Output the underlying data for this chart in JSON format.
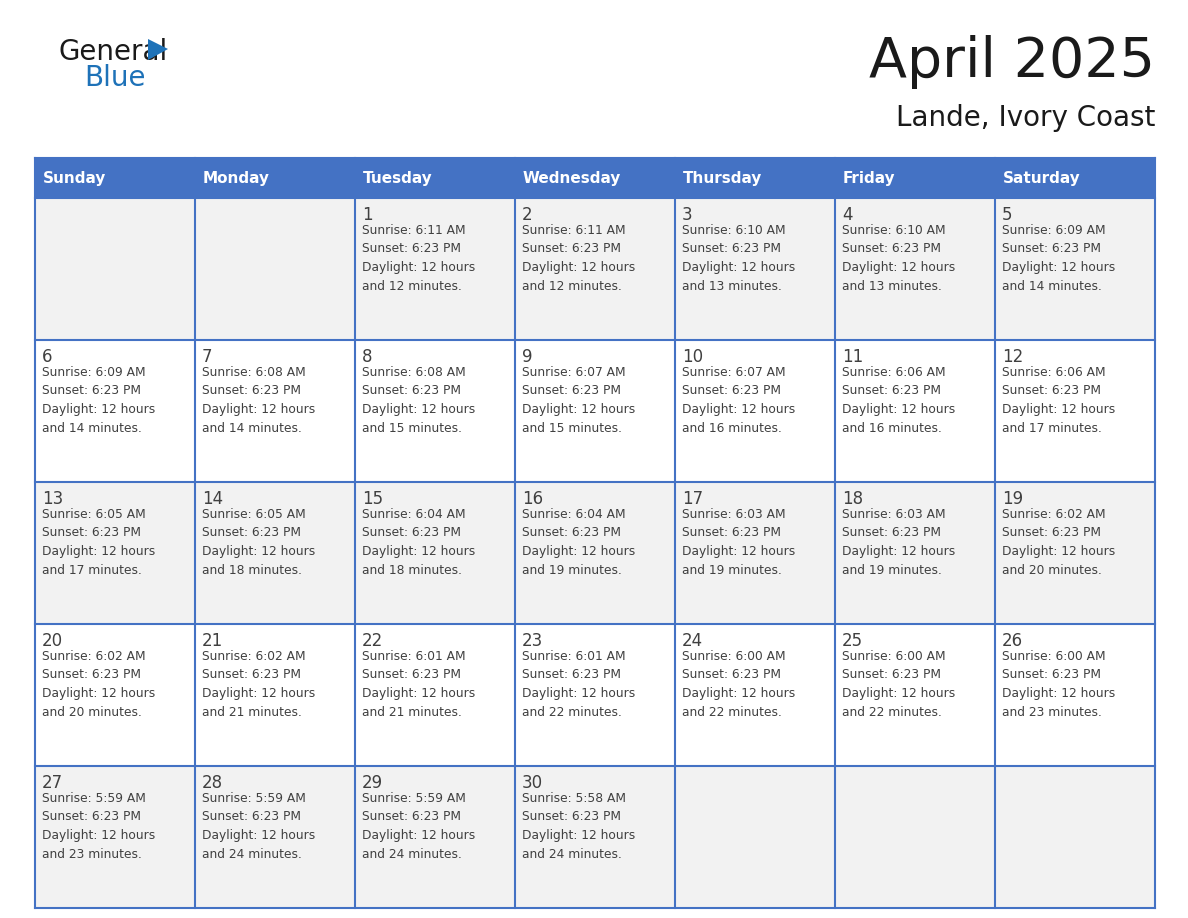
{
  "title": "April 2025",
  "subtitle": "Lande, Ivory Coast",
  "header_bg": "#4472C4",
  "header_text_color": "#FFFFFF",
  "days_of_week": [
    "Sunday",
    "Monday",
    "Tuesday",
    "Wednesday",
    "Thursday",
    "Friday",
    "Saturday"
  ],
  "row_bg_light": "#F2F2F2",
  "row_bg_white": "#FFFFFF",
  "grid_line_color": "#4472C4",
  "text_color": "#404040",
  "title_color": "#1a1a1a",
  "logo_general_color": "#1a1a1a",
  "logo_blue_color": "#1E72B8",
  "logo_triangle_color": "#1E72B8",
  "calendar": [
    [
      {
        "day": "",
        "info": ""
      },
      {
        "day": "",
        "info": ""
      },
      {
        "day": "1",
        "info": "Sunrise: 6:11 AM\nSunset: 6:23 PM\nDaylight: 12 hours\nand 12 minutes."
      },
      {
        "day": "2",
        "info": "Sunrise: 6:11 AM\nSunset: 6:23 PM\nDaylight: 12 hours\nand 12 minutes."
      },
      {
        "day": "3",
        "info": "Sunrise: 6:10 AM\nSunset: 6:23 PM\nDaylight: 12 hours\nand 13 minutes."
      },
      {
        "day": "4",
        "info": "Sunrise: 6:10 AM\nSunset: 6:23 PM\nDaylight: 12 hours\nand 13 minutes."
      },
      {
        "day": "5",
        "info": "Sunrise: 6:09 AM\nSunset: 6:23 PM\nDaylight: 12 hours\nand 14 minutes."
      }
    ],
    [
      {
        "day": "6",
        "info": "Sunrise: 6:09 AM\nSunset: 6:23 PM\nDaylight: 12 hours\nand 14 minutes."
      },
      {
        "day": "7",
        "info": "Sunrise: 6:08 AM\nSunset: 6:23 PM\nDaylight: 12 hours\nand 14 minutes."
      },
      {
        "day": "8",
        "info": "Sunrise: 6:08 AM\nSunset: 6:23 PM\nDaylight: 12 hours\nand 15 minutes."
      },
      {
        "day": "9",
        "info": "Sunrise: 6:07 AM\nSunset: 6:23 PM\nDaylight: 12 hours\nand 15 minutes."
      },
      {
        "day": "10",
        "info": "Sunrise: 6:07 AM\nSunset: 6:23 PM\nDaylight: 12 hours\nand 16 minutes."
      },
      {
        "day": "11",
        "info": "Sunrise: 6:06 AM\nSunset: 6:23 PM\nDaylight: 12 hours\nand 16 minutes."
      },
      {
        "day": "12",
        "info": "Sunrise: 6:06 AM\nSunset: 6:23 PM\nDaylight: 12 hours\nand 17 minutes."
      }
    ],
    [
      {
        "day": "13",
        "info": "Sunrise: 6:05 AM\nSunset: 6:23 PM\nDaylight: 12 hours\nand 17 minutes."
      },
      {
        "day": "14",
        "info": "Sunrise: 6:05 AM\nSunset: 6:23 PM\nDaylight: 12 hours\nand 18 minutes."
      },
      {
        "day": "15",
        "info": "Sunrise: 6:04 AM\nSunset: 6:23 PM\nDaylight: 12 hours\nand 18 minutes."
      },
      {
        "day": "16",
        "info": "Sunrise: 6:04 AM\nSunset: 6:23 PM\nDaylight: 12 hours\nand 19 minutes."
      },
      {
        "day": "17",
        "info": "Sunrise: 6:03 AM\nSunset: 6:23 PM\nDaylight: 12 hours\nand 19 minutes."
      },
      {
        "day": "18",
        "info": "Sunrise: 6:03 AM\nSunset: 6:23 PM\nDaylight: 12 hours\nand 19 minutes."
      },
      {
        "day": "19",
        "info": "Sunrise: 6:02 AM\nSunset: 6:23 PM\nDaylight: 12 hours\nand 20 minutes."
      }
    ],
    [
      {
        "day": "20",
        "info": "Sunrise: 6:02 AM\nSunset: 6:23 PM\nDaylight: 12 hours\nand 20 minutes."
      },
      {
        "day": "21",
        "info": "Sunrise: 6:02 AM\nSunset: 6:23 PM\nDaylight: 12 hours\nand 21 minutes."
      },
      {
        "day": "22",
        "info": "Sunrise: 6:01 AM\nSunset: 6:23 PM\nDaylight: 12 hours\nand 21 minutes."
      },
      {
        "day": "23",
        "info": "Sunrise: 6:01 AM\nSunset: 6:23 PM\nDaylight: 12 hours\nand 22 minutes."
      },
      {
        "day": "24",
        "info": "Sunrise: 6:00 AM\nSunset: 6:23 PM\nDaylight: 12 hours\nand 22 minutes."
      },
      {
        "day": "25",
        "info": "Sunrise: 6:00 AM\nSunset: 6:23 PM\nDaylight: 12 hours\nand 22 minutes."
      },
      {
        "day": "26",
        "info": "Sunrise: 6:00 AM\nSunset: 6:23 PM\nDaylight: 12 hours\nand 23 minutes."
      }
    ],
    [
      {
        "day": "27",
        "info": "Sunrise: 5:59 AM\nSunset: 6:23 PM\nDaylight: 12 hours\nand 23 minutes."
      },
      {
        "day": "28",
        "info": "Sunrise: 5:59 AM\nSunset: 6:23 PM\nDaylight: 12 hours\nand 24 minutes."
      },
      {
        "day": "29",
        "info": "Sunrise: 5:59 AM\nSunset: 6:23 PM\nDaylight: 12 hours\nand 24 minutes."
      },
      {
        "day": "30",
        "info": "Sunrise: 5:58 AM\nSunset: 6:23 PM\nDaylight: 12 hours\nand 24 minutes."
      },
      {
        "day": "",
        "info": ""
      },
      {
        "day": "",
        "info": ""
      },
      {
        "day": "",
        "info": ""
      }
    ]
  ]
}
